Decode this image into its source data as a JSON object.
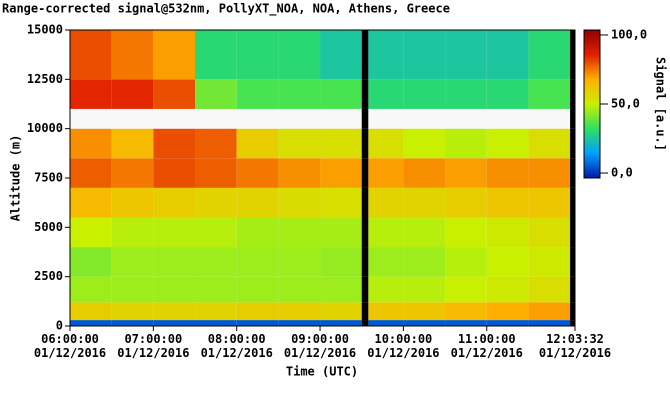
{
  "chart_data": {
    "type": "heatmap",
    "title": "Range-corrected signal@532nm, PollyXT_NOA, NOA, Athens, Greece",
    "x_label": "Time (UTC)",
    "y_label": "Altitude (m)",
    "colorbar_label": "Signal [a.u.]",
    "xlim": [
      6,
      12.0589
    ],
    "xticks": [
      {
        "value": 6,
        "label": "06:00:00\n01/12/2016"
      },
      {
        "value": 7,
        "label": "07:00:00\n01/12/2016"
      },
      {
        "value": 8,
        "label": "08:00:00\n01/12/2016"
      },
      {
        "value": 9,
        "label": "09:00:00\n01/12/2016"
      },
      {
        "value": 10,
        "label": "10:00:00\n01/12/2016"
      },
      {
        "value": 11,
        "label": "11:00:00\n01/12/2016"
      },
      {
        "value": 12.0589,
        "label": "12:03:32\n01/12/2016"
      }
    ],
    "ylim": [
      0,
      15000
    ],
    "yticks": [
      0,
      2500,
      5000,
      7500,
      10000,
      12500,
      15000
    ],
    "clim": [
      -3.6,
      103.6
    ],
    "cticks": [
      {
        "value": 100,
        "label": "100,0"
      },
      {
        "value": 50,
        "label": "50,0"
      },
      {
        "value": 0,
        "label": "0,0"
      }
    ],
    "colormap": [
      "#0018a8",
      "#00a0ff",
      "#30e060",
      "#c8f000",
      "#ffb000",
      "#e02000",
      "#900000"
    ],
    "over_color": "#f8f8f8",
    "null_color": "#000000",
    "x_edges": [
      6,
      6.5,
      7,
      7.5,
      8,
      8.5,
      9,
      9.5,
      9.58,
      10,
      10.5,
      11,
      11.5,
      12,
      12.0589
    ],
    "y_edges": [
      0,
      300,
      1200,
      2500,
      4000,
      5500,
      7000,
      8500,
      10000,
      11000,
      12500,
      15000
    ],
    "z": [
      [
        5,
        5,
        5,
        5,
        5,
        5,
        5,
        null,
        5,
        5,
        5,
        5,
        5,
        null
      ],
      [
        60,
        58,
        58,
        58,
        60,
        60,
        58,
        null,
        62,
        62,
        65,
        68,
        70,
        null
      ],
      [
        45,
        45,
        45,
        45,
        45,
        45,
        45,
        null,
        48,
        48,
        50,
        52,
        55,
        null
      ],
      [
        42,
        45,
        45,
        45,
        45,
        45,
        44,
        null,
        45,
        45,
        48,
        50,
        52,
        null
      ],
      [
        50,
        48,
        48,
        48,
        46,
        46,
        46,
        null,
        48,
        48,
        50,
        52,
        55,
        null
      ],
      [
        65,
        62,
        60,
        58,
        58,
        56,
        55,
        null,
        58,
        58,
        60,
        62,
        62,
        null
      ],
      [
        78,
        75,
        80,
        78,
        75,
        72,
        70,
        null,
        70,
        72,
        70,
        72,
        72,
        null
      ],
      [
        72,
        65,
        80,
        78,
        60,
        55,
        55,
        null,
        55,
        50,
        48,
        50,
        55,
        null
      ],
      [
        120,
        120,
        120,
        120,
        120,
        120,
        120,
        null,
        120,
        120,
        120,
        120,
        120,
        null
      ],
      [
        85,
        85,
        80,
        40,
        35,
        35,
        35,
        null,
        30,
        30,
        30,
        30,
        35,
        null
      ],
      [
        80,
        75,
        70,
        30,
        30,
        30,
        25,
        null,
        25,
        25,
        25,
        25,
        30,
        null
      ]
    ]
  }
}
